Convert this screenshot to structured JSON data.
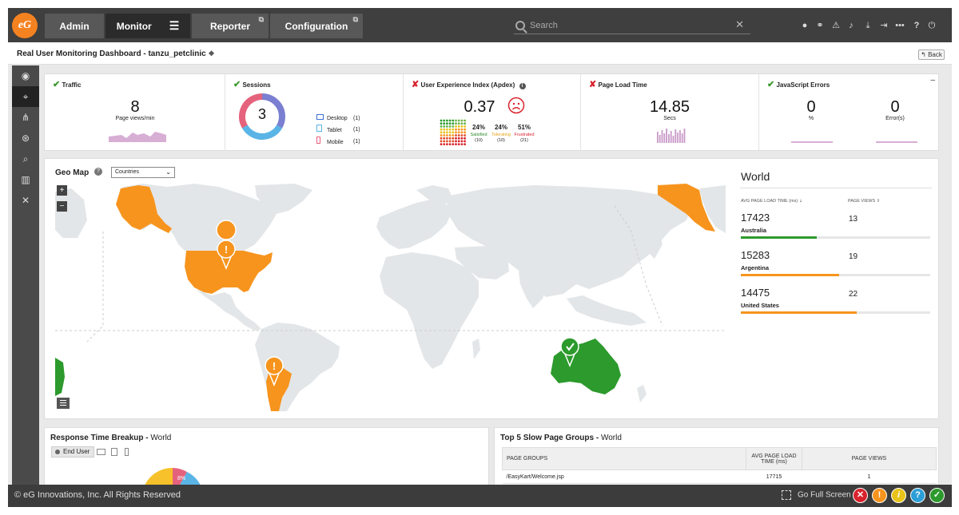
{
  "nav": {
    "logo": "eG",
    "tabs": [
      {
        "label": "Admin"
      },
      {
        "label": "Monitor"
      },
      {
        "label": "Reporter"
      },
      {
        "label": "Configuration"
      }
    ],
    "search_placeholder": "Search"
  },
  "page": {
    "title": "Real User Monitoring Dashboard - tanzu_petclinic",
    "back_label": "Back"
  },
  "stats": {
    "traffic": {
      "title": "Traffic",
      "value": "8",
      "label": "Page views/min"
    },
    "sessions": {
      "title": "Sessions",
      "value": "3",
      "legend": [
        {
          "label": "Desktop",
          "count": "(1)"
        },
        {
          "label": "Tablet",
          "count": "(1)"
        },
        {
          "label": "Mobile",
          "count": "(1)"
        }
      ]
    },
    "apdex": {
      "title": "User Experience Index (Apdex)",
      "value": "0.37",
      "satisfied": {
        "pct": "24%",
        "label": "Satisfied",
        "count": "(10)"
      },
      "tolerating": {
        "pct": "24%",
        "label": "Tolerating",
        "count": "(10)"
      },
      "frustrated": {
        "pct": "51%",
        "label": "Frustrated",
        "count": "(21)"
      }
    },
    "page_load": {
      "title": "Page Load Time",
      "value": "14.85",
      "label": "Secs"
    },
    "js_errors": {
      "title": "JavaScript Errors",
      "pct_value": "0",
      "pct_label": "%",
      "err_value": "0",
      "err_label": "Error(s)"
    }
  },
  "geo": {
    "title": "Geo Map",
    "select_value": "Countries",
    "zoom_in": "+",
    "zoom_out": "−"
  },
  "world": {
    "title": "World",
    "col1": "AVG PAGE LOAD TIME (ms) ⇣",
    "col2": "PAGE VIEWS ⇳",
    "rows": [
      {
        "value": "17423",
        "country": "Australia",
        "views": "13",
        "fill": 0.4,
        "color": "#2c9a2c"
      },
      {
        "value": "15283",
        "country": "Argentina",
        "views": "19",
        "fill": 0.52,
        "color": "#f7941d"
      },
      {
        "value": "14475",
        "country": "United States",
        "views": "22",
        "fill": 0.61,
        "color": "#f7941d"
      }
    ]
  },
  "response": {
    "title": "Response Time Breakup",
    "scope": "World",
    "enduser_label": "End User",
    "pie_label": "8%"
  },
  "slow_pages": {
    "title": "Top 5 Slow Page Groups",
    "scope": "World",
    "headers": [
      "PAGE GROUPS",
      "AVG PAGE LOAD TIME (ms)",
      "PAGE VIEWS"
    ],
    "rows": [
      {
        "group": "/EasyKart/Welcome.jsp",
        "load": "17715",
        "views": "1"
      }
    ]
  },
  "footer": {
    "copyright": "© eG Innovations, Inc. All Rights Reserved",
    "fullscreen": "Go Full Screen"
  },
  "colors": {
    "accent": "#f58220",
    "ok": "#3a9a2b",
    "error": "#d9232d"
  }
}
